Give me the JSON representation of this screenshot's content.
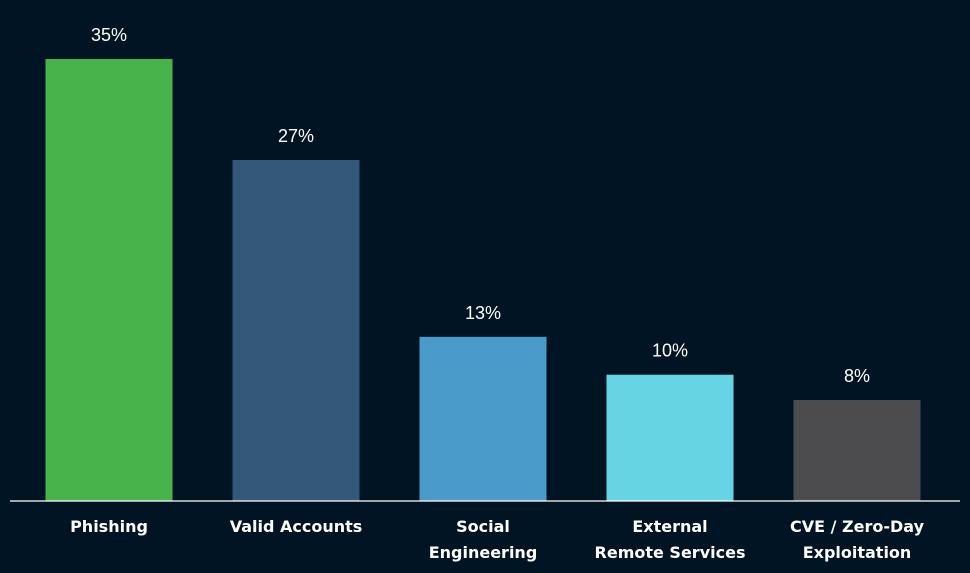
{
  "chart_data": {
    "type": "bar",
    "categories": [
      "Phishing",
      "Valid Accounts",
      "Social Engineering",
      "External Remote Services",
      "CVE / Zero-Day Exploitation"
    ],
    "category_label_lines": [
      [
        "Phishing"
      ],
      [
        "Valid Accounts"
      ],
      [
        "Social",
        "Engineering"
      ],
      [
        "External",
        "Remote Services"
      ],
      [
        "CVE / Zero-Day",
        "Exploitation"
      ]
    ],
    "values": [
      35,
      27,
      13,
      10,
      8
    ],
    "value_labels": [
      "35%",
      "27%",
      "13%",
      "10%",
      "8%"
    ],
    "bar_colors": [
      "#48b34a",
      "#34587a",
      "#4a9bc9",
      "#66d4e3",
      "#4c4c4e"
    ],
    "background_color": "#011423",
    "axis_color": "#ffffff",
    "label_color": "#ffffff",
    "ylim": [
      0,
      35
    ],
    "grid": false,
    "legend": "none"
  }
}
